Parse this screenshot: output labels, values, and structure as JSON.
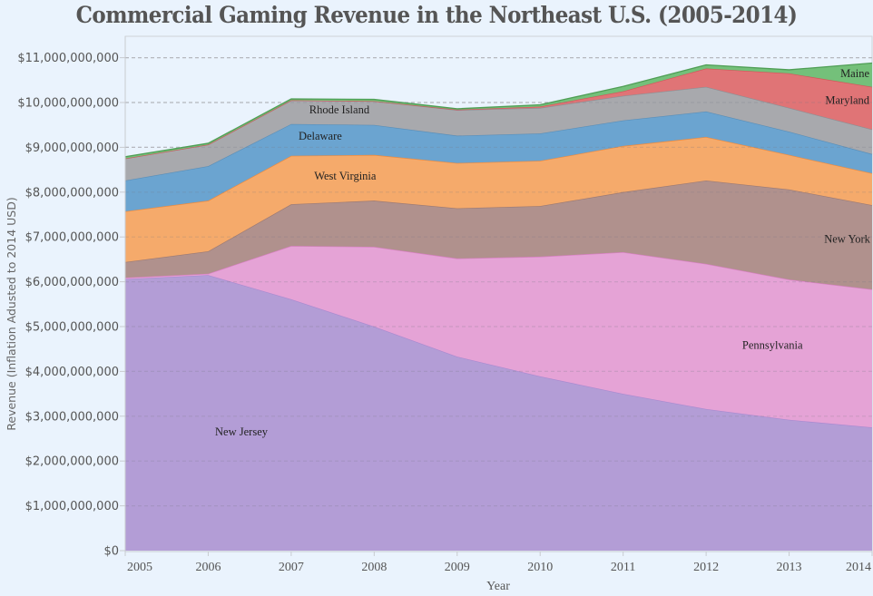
{
  "chart_data": {
    "type": "area",
    "stacked": true,
    "title": "Commercial Gaming Revenue in the Northeast U.S. (2005-2014)",
    "xlabel": "Year",
    "ylabel": "Revenue (Inflation Adusted to 2014 USD)",
    "x": [
      2005,
      2006,
      2007,
      2008,
      2009,
      2010,
      2011,
      2012,
      2013,
      2014
    ],
    "x_tick_labels": [
      "2005",
      "2006",
      "2007",
      "2008",
      "2009",
      "2010",
      "2011",
      "2012",
      "2013",
      "2014"
    ],
    "ylim": [
      0,
      11300000000
    ],
    "y_ticks": [
      0,
      1000000000,
      2000000000,
      3000000000,
      4000000000,
      5000000000,
      6000000000,
      7000000000,
      8000000000,
      9000000000,
      10000000000,
      11000000000
    ],
    "y_tick_labels": [
      "$0",
      "$1,000,000,000",
      "$2,000,000,000",
      "$3,000,000,000",
      "$4,000,000,000",
      "$5,000,000,000",
      "$6,000,000,000",
      "$7,000,000,000",
      "$8,000,000,000",
      "$9,000,000,000",
      "$10,000,000,000",
      "$11,000,000,000"
    ],
    "grid": true,
    "legend": "inline-labels",
    "series": [
      {
        "name": "New Jersey",
        "color": "#b39dd6",
        "line": "#a98ad0",
        "values": [
          6060000000,
          6150000000,
          5610000000,
          5000000000,
          4330000000,
          3890000000,
          3500000000,
          3160000000,
          2920000000,
          2750000000
        ]
      },
      {
        "name": "Pennsylvania",
        "color": "#e5a3d6",
        "line": "#d97fc4",
        "values": [
          30000000,
          30000000,
          1190000000,
          1780000000,
          2190000000,
          2670000000,
          3160000000,
          3240000000,
          3130000000,
          3080000000
        ]
      },
      {
        "name": "New York",
        "color": "#b0918d",
        "line": "#9c7a74",
        "values": [
          350000000,
          500000000,
          930000000,
          1030000000,
          1120000000,
          1130000000,
          1340000000,
          1860000000,
          2010000000,
          1880000000
        ]
      },
      {
        "name": "West Virginia",
        "color": "#f5aa6b",
        "line": "#ef8a3c",
        "values": [
          1130000000,
          1130000000,
          1080000000,
          1020000000,
          1010000000,
          1010000000,
          1030000000,
          970000000,
          770000000,
          710000000
        ]
      },
      {
        "name": "Delaware",
        "color": "#6ba4d0",
        "line": "#5b8fb8",
        "values": [
          690000000,
          770000000,
          710000000,
          670000000,
          610000000,
          610000000,
          570000000,
          570000000,
          520000000,
          430000000
        ]
      },
      {
        "name": "Rhode Island",
        "color": "#a8a9ad",
        "line": "#8e8f94",
        "values": [
          490000000,
          480000000,
          530000000,
          530000000,
          570000000,
          570000000,
          550000000,
          550000000,
          530000000,
          550000000
        ]
      },
      {
        "name": "Maryland",
        "color": "#e07476",
        "line": "#d2555a",
        "values": [
          0,
          0,
          0,
          0,
          10000000,
          30000000,
          100000000,
          410000000,
          770000000,
          950000000
        ]
      },
      {
        "name": "Maine",
        "color": "#74c07a",
        "line": "#4f9e55",
        "values": [
          40000000,
          30000000,
          30000000,
          40000000,
          20000000,
          40000000,
          110000000,
          80000000,
          80000000,
          530000000
        ]
      }
    ],
    "annotations": [
      {
        "text": "New Jersey",
        "series": "New Jersey",
        "x": 2006.4,
        "y": 2570000000
      },
      {
        "text": "Pennsylvania",
        "series": "Pennsylvania",
        "x": 2012.8,
        "y": 4500000000
      },
      {
        "text": "New York",
        "series": "New York",
        "x": 2013.7,
        "y": 6870000000
      },
      {
        "text": "West Virginia",
        "series": "West Virginia",
        "x": 2007.65,
        "y": 8280000000
      },
      {
        "text": "Delaware",
        "series": "Delaware",
        "x": 2007.35,
        "y": 9170000000
      },
      {
        "text": "Rhode Island",
        "series": "Rhode Island",
        "x": 2007.58,
        "y": 9760000000
      },
      {
        "text": "Maryland",
        "series": "Maryland",
        "x": 2013.65,
        "y": 9970000000
      },
      {
        "text": "Maine",
        "series": "Maine",
        "x": 2013.8,
        "y": 10570000000
      }
    ]
  }
}
